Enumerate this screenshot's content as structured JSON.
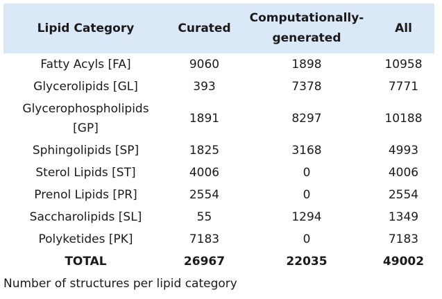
{
  "table": {
    "headers": [
      "Lipid Category",
      "Curated",
      "Computationally-generated",
      "All"
    ],
    "rows": [
      {
        "category": "Fatty Acyls [FA]",
        "curated": "9060",
        "computational": "1898",
        "all": "10958"
      },
      {
        "category": "Glycerolipids [GL]",
        "curated": "393",
        "computational": "7378",
        "all": "7771"
      },
      {
        "category": "Glycerophospholipids [GP]",
        "curated": "1891",
        "computational": "8297",
        "all": "10188"
      },
      {
        "category": "Sphingolipids [SP]",
        "curated": "1825",
        "computational": "3168",
        "all": "4993"
      },
      {
        "category": "Sterol Lipids [ST]",
        "curated": "4006",
        "computational": "0",
        "all": "4006"
      },
      {
        "category": "Prenol Lipids [PR]",
        "curated": "2554",
        "computational": "0",
        "all": "2554"
      },
      {
        "category": "Saccharolipids [SL]",
        "curated": "55",
        "computational": "1294",
        "all": "1349"
      },
      {
        "category": "Polyketides [PK]",
        "curated": "7183",
        "computational": "0",
        "all": "7183"
      }
    ],
    "total": {
      "label": "TOTAL",
      "curated": "26967",
      "computational": "22035",
      "all": "49002"
    },
    "header_bg": "#dbe8f7"
  },
  "caption": "Number of structures per lipid category"
}
